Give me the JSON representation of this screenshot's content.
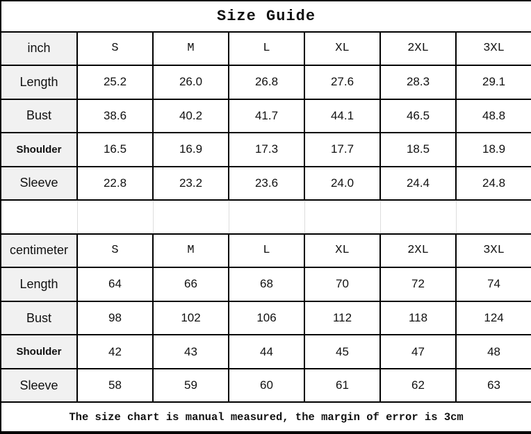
{
  "title": "Size Guide",
  "sizes": [
    "S",
    "M",
    "L",
    "XL",
    "2XL",
    "3XL"
  ],
  "inch_table": {
    "unit_label": "inch",
    "rows": [
      {
        "label": "Length",
        "values": [
          "25.2",
          "26.0",
          "26.8",
          "27.6",
          "28.3",
          "29.1"
        ]
      },
      {
        "label": "Bust",
        "values": [
          "38.6",
          "40.2",
          "41.7",
          "44.1",
          "46.5",
          "48.8"
        ]
      },
      {
        "label": "Shoulder",
        "values": [
          "16.5",
          "16.9",
          "17.3",
          "17.7",
          "18.5",
          "18.9"
        ]
      },
      {
        "label": "Sleeve",
        "values": [
          "22.8",
          "23.2",
          "23.6",
          "24.0",
          "24.4",
          "24.8"
        ]
      }
    ]
  },
  "cm_table": {
    "unit_label": "centimeter",
    "rows": [
      {
        "label": "Length",
        "values": [
          "64",
          "66",
          "68",
          "70",
          "72",
          "74"
        ]
      },
      {
        "label": "Bust",
        "values": [
          "98",
          "102",
          "106",
          "112",
          "118",
          "124"
        ]
      },
      {
        "label": "Shoulder",
        "values": [
          "42",
          "43",
          "44",
          "45",
          "47",
          "48"
        ]
      },
      {
        "label": "Sleeve",
        "values": [
          "58",
          "59",
          "60",
          "61",
          "62",
          "63"
        ]
      }
    ]
  },
  "footer_note": "The size chart is manual measured, the margin of error is 3cm",
  "colors": {
    "border": "#000000",
    "label_cell_bg": "#f1f1f1",
    "separator_divider": "#dddddd",
    "text": "#111111",
    "background": "#ffffff"
  },
  "chart_data": [
    {
      "type": "table",
      "title": "Size Guide",
      "unit": "inch",
      "columns": [
        "inch",
        "S",
        "M",
        "L",
        "XL",
        "2XL",
        "3XL"
      ],
      "rows": [
        [
          "Length",
          "25.2",
          "26.0",
          "26.8",
          "27.6",
          "28.3",
          "29.1"
        ],
        [
          "Bust",
          "38.6",
          "40.2",
          "41.7",
          "44.1",
          "46.5",
          "48.8"
        ],
        [
          "Shoulder",
          "16.5",
          "16.9",
          "17.3",
          "17.7",
          "18.5",
          "18.9"
        ],
        [
          "Sleeve",
          "22.8",
          "23.2",
          "23.6",
          "24.0",
          "24.4",
          "24.8"
        ]
      ]
    },
    {
      "type": "table",
      "title": "Size Guide",
      "unit": "centimeter",
      "columns": [
        "centimeter",
        "S",
        "M",
        "L",
        "XL",
        "2XL",
        "3XL"
      ],
      "rows": [
        [
          "Length",
          "64",
          "66",
          "68",
          "70",
          "72",
          "74"
        ],
        [
          "Bust",
          "98",
          "102",
          "106",
          "112",
          "118",
          "124"
        ],
        [
          "Shoulder",
          "42",
          "43",
          "44",
          "45",
          "47",
          "48"
        ],
        [
          "Sleeve",
          "58",
          "59",
          "60",
          "61",
          "62",
          "63"
        ]
      ],
      "note": "The size chart is manual measured, the margin of error is 3cm"
    }
  ]
}
